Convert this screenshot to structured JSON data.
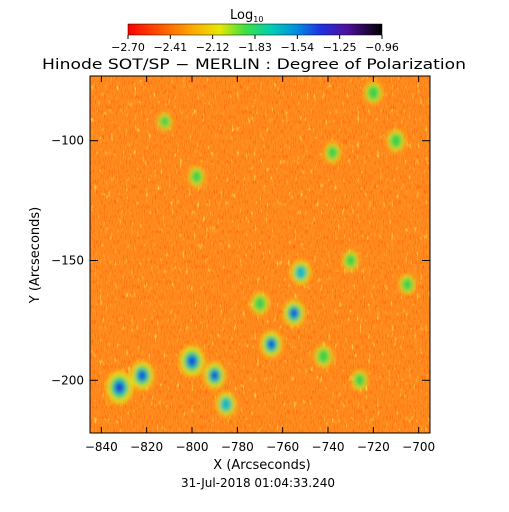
{
  "chart_data": {
    "type": "heatmap",
    "title": "Hinode SOT/SP − MERLIN : Degree of Polarization",
    "xlabel": "X (Arcseconds)",
    "ylabel": "Y (Arcseconds)",
    "xlim": [
      -845,
      -695
    ],
    "ylim": [
      -222,
      -73
    ],
    "x_ticks": [
      -840,
      -820,
      -800,
      -780,
      -760,
      -740,
      -720,
      -700
    ],
    "y_ticks": [
      -100,
      -150,
      -200
    ],
    "timestamp": "31-Jul-2018 01:04:33.240",
    "colorbar": {
      "label_base": "Log",
      "label_sub": "10",
      "range": [
        -2.7,
        -0.96
      ],
      "ticks": [
        "−2.70",
        "−2.41",
        "−2.12",
        "−1.83",
        "−1.54",
        "−1.25",
        "−0.96"
      ]
    },
    "colors": {
      "low": "#ff2800",
      "background": "#ff8c1e",
      "mid": "#e6e614",
      "high_green": "#28d250",
      "high_cyan": "#14b4d2",
      "high_blue": "#1e28d2"
    },
    "regions": [
      {
        "x": -832,
        "y": -203,
        "level": 1.0
      },
      {
        "x": -822,
        "y": -198,
        "level": 0.8
      },
      {
        "x": -800,
        "y": -192,
        "level": 0.9
      },
      {
        "x": -790,
        "y": -198,
        "level": 0.7
      },
      {
        "x": -785,
        "y": -210,
        "level": 0.6
      },
      {
        "x": -765,
        "y": -185,
        "level": 0.7
      },
      {
        "x": -755,
        "y": -172,
        "level": 0.7
      },
      {
        "x": -770,
        "y": -168,
        "level": 0.5
      },
      {
        "x": -752,
        "y": -155,
        "level": 0.6
      },
      {
        "x": -742,
        "y": -190,
        "level": 0.5
      },
      {
        "x": -738,
        "y": -105,
        "level": 0.4
      },
      {
        "x": -730,
        "y": -150,
        "level": 0.4
      },
      {
        "x": -710,
        "y": -100,
        "level": 0.5
      },
      {
        "x": -705,
        "y": -160,
        "level": 0.4
      },
      {
        "x": -798,
        "y": -115,
        "level": 0.4
      },
      {
        "x": -812,
        "y": -92,
        "level": 0.3
      },
      {
        "x": -720,
        "y": -80,
        "level": 0.5
      },
      {
        "x": -726,
        "y": -200,
        "level": 0.4
      }
    ]
  }
}
